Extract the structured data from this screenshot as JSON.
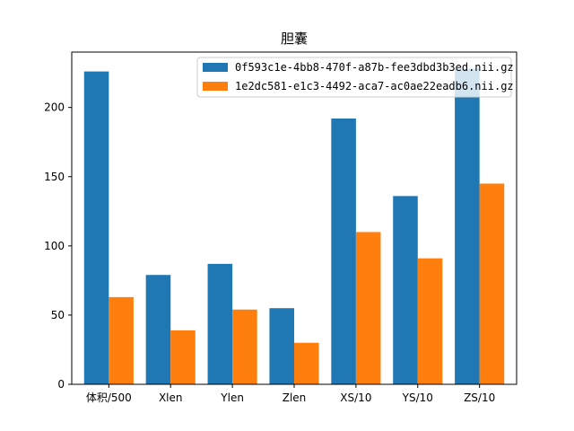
{
  "chart_data": {
    "type": "bar",
    "title": "胆囊",
    "xlabel": "",
    "ylabel": "",
    "categories": [
      "体积/500",
      "Xlen",
      "Ylen",
      "Zlen",
      "XS/10",
      "YS/10",
      "ZS/10"
    ],
    "series": [
      {
        "name": "0f593c1e-4bb8-470f-a87b-fee3dbd3b3ed.nii.gz",
        "color": "#1f77b4",
        "values": [
          226,
          79,
          87,
          55,
          192,
          136,
          228
        ]
      },
      {
        "name": "1e2dc581-e1c3-4492-aca7-ac0ae22eadb6.nii.gz",
        "color": "#ff7f0e",
        "values": [
          63,
          39,
          54,
          30,
          110,
          91,
          145
        ]
      }
    ],
    "ylim": [
      0,
      240
    ],
    "yticks": [
      0,
      50,
      100,
      150,
      200
    ],
    "grid": false,
    "legend_position": "top-right"
  }
}
